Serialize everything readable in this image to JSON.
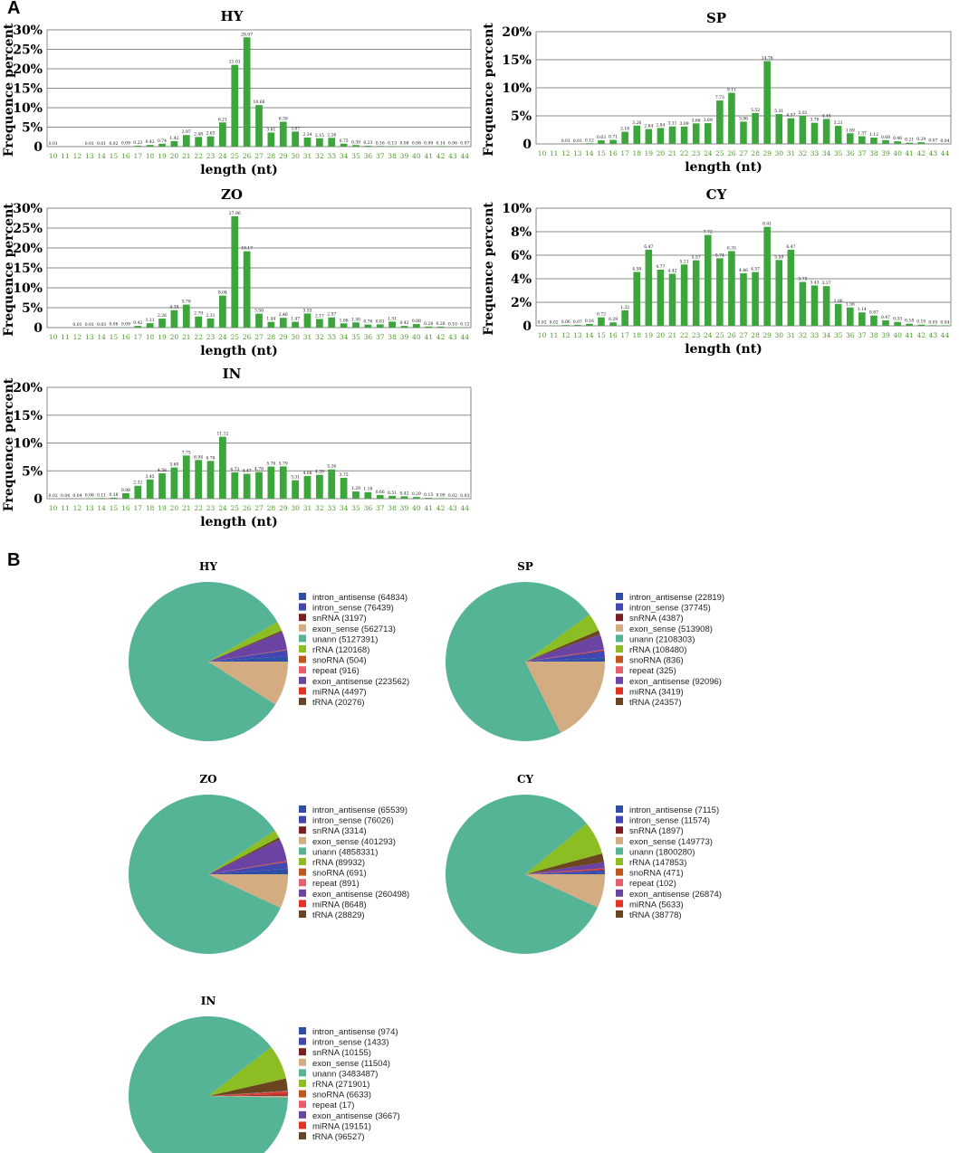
{
  "panels": {
    "a_label": "A",
    "b_label": "B"
  },
  "chart_data": [
    {
      "type": "bar",
      "title": "HY",
      "xlabel": "length (nt)",
      "ylabel": "Frequence percent",
      "yticks": [
        "0",
        "5%",
        "10%",
        "15%",
        "20%",
        "25%",
        "30%"
      ],
      "ylim": [
        0,
        30
      ],
      "categories": [
        "10",
        "11",
        "12",
        "13",
        "14",
        "15",
        "16",
        "17",
        "18",
        "19",
        "20",
        "21",
        "22",
        "23",
        "24",
        "25",
        "26",
        "27",
        "28",
        "29",
        "30",
        "31",
        "32",
        "33",
        "34",
        "35",
        "36",
        "37",
        "38",
        "39",
        "40",
        "41",
        "42",
        "43",
        "44"
      ],
      "values": [
        0.01,
        0,
        0,
        0.01,
        0.01,
        0.02,
        0.09,
        0.23,
        0.42,
        0.74,
        1.42,
        2.97,
        2.48,
        2.63,
        6.21,
        21.01,
        28.07,
        10.66,
        3.61,
        6.39,
        3.87,
        2.34,
        2.15,
        2.26,
        0.75,
        0.39,
        0.23,
        0.16,
        0.13,
        0.08,
        0.08,
        0.09,
        0.14,
        0.06,
        0.07
      ],
      "labels": [
        "0.01",
        "",
        "",
        "0.01",
        "0.01",
        "0.02",
        "0.09",
        "0.23",
        "0.42",
        "0.74",
        "1.42",
        "2.97",
        "2.48",
        "2.63",
        "6.21",
        "21.01",
        "28.07",
        "10.66",
        "3.61",
        "6.39",
        "3.87",
        "2.34",
        "2.15",
        "2.26",
        "0.75",
        "0.39",
        "0.23",
        "0.16",
        "0.13",
        "0.08",
        "0.08",
        "0.09",
        "0.14",
        "0.06",
        "0.07"
      ]
    },
    {
      "type": "bar",
      "title": "SP",
      "xlabel": "length (nt)",
      "ylabel": "Frequence percent",
      "yticks": [
        "0",
        "5%",
        "10%",
        "15%",
        "20%"
      ],
      "ylim": [
        0,
        20
      ],
      "categories": [
        "10",
        "11",
        "12",
        "13",
        "14",
        "15",
        "16",
        "17",
        "18",
        "19",
        "20",
        "21",
        "22",
        "23",
        "24",
        "25",
        "26",
        "27",
        "28",
        "29",
        "30",
        "31",
        "32",
        "33",
        "34",
        "35",
        "36",
        "37",
        "38",
        "39",
        "40",
        "41",
        "42",
        "43",
        "44"
      ],
      "values": [
        0,
        0,
        0.01,
        0.01,
        0.12,
        0.63,
        0.71,
        2.16,
        3.26,
        2.64,
        2.84,
        3.11,
        3.09,
        3.66,
        3.69,
        7.73,
        9.11,
        3.96,
        5.52,
        14.76,
        5.31,
        4.57,
        5.02,
        3.76,
        4.45,
        3.21,
        1.89,
        1.37,
        1.12,
        0.68,
        0.46,
        0.21,
        0.29,
        0.07,
        0.04
      ],
      "labels": [
        "",
        "",
        "0.01",
        "0.01",
        "0.12",
        "0.63",
        "0.71",
        "2.16",
        "3.26",
        "2.64",
        "2.84",
        "3.11",
        "3.09",
        "3.66",
        "3.69",
        "7.73",
        "9.11",
        "3.96",
        "5.52",
        "14.76",
        "5.31",
        "4.57",
        "5.02",
        "3.76",
        "4.45",
        "3.21",
        "1.89",
        "1.37",
        "1.12",
        "0.68",
        "0.46",
        "0.21",
        "0.29",
        "0.07",
        "0.04"
      ]
    },
    {
      "type": "bar",
      "title": "ZO",
      "xlabel": "length (nt)",
      "ylabel": "Frequence percent",
      "yticks": [
        "0",
        "5%",
        "10%",
        "15%",
        "20%",
        "25%",
        "30%"
      ],
      "ylim": [
        0,
        30
      ],
      "categories": [
        "10",
        "11",
        "12",
        "13",
        "14",
        "15",
        "16",
        "17",
        "18",
        "19",
        "20",
        "21",
        "22",
        "23",
        "24",
        "25",
        "26",
        "27",
        "28",
        "29",
        "30",
        "31",
        "32",
        "33",
        "34",
        "35",
        "36",
        "37",
        "38",
        "39",
        "40",
        "41",
        "42",
        "43",
        "44"
      ],
      "values": [
        0,
        0,
        0.01,
        0.01,
        0.03,
        0.06,
        0.09,
        0.42,
        1.11,
        2.26,
        4.38,
        5.78,
        2.79,
        2.31,
        8.04,
        27.96,
        19.17,
        3.5,
        1.44,
        2.46,
        1.47,
        3.55,
        2.17,
        2.57,
        1.06,
        1.3,
        0.76,
        0.81,
        1.51,
        0.42,
        0.88,
        0.28,
        0.26,
        0.1,
        0.12
      ],
      "labels": [
        "",
        "",
        "0.01",
        "0.01",
        "0.03",
        "0.06",
        "0.09",
        "0.42",
        "1.11",
        "2.26",
        "4.38",
        "5.78",
        "2.79",
        "2.31",
        "8.04",
        "27.96",
        "19.17",
        "3.50",
        "1.44",
        "2.46",
        "1.47",
        "3.55",
        "2.17",
        "2.57",
        "1.06",
        "1.30",
        "0.76",
        "0.81",
        "1.51",
        "0.42",
        "0.88",
        "0.28",
        "0.26",
        "0.10",
        "0.12"
      ]
    },
    {
      "type": "bar",
      "title": "CY",
      "xlabel": "length (nt)",
      "ylabel": "Frequence percent",
      "yticks": [
        "0",
        "2%",
        "4%",
        "6%",
        "8%",
        "10%"
      ],
      "ylim": [
        0,
        10
      ],
      "categories": [
        "10",
        "11",
        "12",
        "13",
        "14",
        "15",
        "16",
        "17",
        "18",
        "19",
        "20",
        "21",
        "22",
        "23",
        "24",
        "25",
        "26",
        "27",
        "28",
        "29",
        "30",
        "31",
        "32",
        "33",
        "34",
        "35",
        "36",
        "37",
        "38",
        "39",
        "40",
        "41",
        "42",
        "43",
        "44"
      ],
      "values": [
        0.02,
        0.02,
        0.06,
        0.07,
        0.16,
        0.72,
        0.29,
        1.32,
        4.58,
        6.47,
        4.77,
        4.42,
        5.21,
        5.57,
        7.72,
        5.74,
        6.35,
        4.46,
        4.57,
        8.41,
        5.59,
        6.47,
        3.73,
        3.43,
        3.37,
        1.86,
        1.56,
        1.14,
        0.87,
        0.47,
        0.33,
        0.18,
        0.1,
        0.05,
        0.04
      ],
      "labels": [
        "0.02",
        "0.02",
        "0.06",
        "0.07",
        "0.16",
        "0.72",
        "0.29",
        "1.32",
        "4.58",
        "6.47",
        "4.77",
        "4.42",
        "5.21",
        "5.57",
        "7.72",
        "5.74",
        "6.35",
        "4.46",
        "4.57",
        "8.41",
        "5.59",
        "6.47",
        "3.73",
        "3.43",
        "3.37",
        "1.86",
        "1.56",
        "1.14",
        "0.87",
        "0.47",
        "0.33",
        "0.18",
        "0.10",
        "0.05",
        "0.04"
      ]
    },
    {
      "type": "bar",
      "title": "IN",
      "xlabel": "length (nt)",
      "ylabel": "Frequence percent",
      "yticks": [
        "0",
        "5%",
        "10%",
        "15%",
        "20%"
      ],
      "ylim": [
        0,
        20
      ],
      "categories": [
        "10",
        "11",
        "12",
        "13",
        "14",
        "15",
        "16",
        "17",
        "18",
        "19",
        "20",
        "21",
        "22",
        "23",
        "24",
        "25",
        "26",
        "27",
        "28",
        "29",
        "30",
        "31",
        "32",
        "33",
        "34",
        "35",
        "36",
        "37",
        "38",
        "39",
        "40",
        "41",
        "42",
        "43",
        "44"
      ],
      "values": [
        0.02,
        0.04,
        0.04,
        0.06,
        0.11,
        0.18,
        0.98,
        2.32,
        3.45,
        4.56,
        5.6,
        7.75,
        6.94,
        6.78,
        11.12,
        4.73,
        4.47,
        4.78,
        5.76,
        5.79,
        3.31,
        4.08,
        4.28,
        5.26,
        3.75,
        1.29,
        1.18,
        0.66,
        0.51,
        0.42,
        0.29,
        0.15,
        0.09,
        0.02,
        0.03
      ],
      "labels": [
        "0.02",
        "0.04",
        "0.04",
        "0.06",
        "0.11",
        "0.18",
        "0.98",
        "2.32",
        "3.45",
        "4.56",
        "5.60",
        "7.75",
        "6.94",
        "6.78",
        "11.12",
        "4.73",
        "4.47",
        "4.78",
        "5.76",
        "5.79",
        "3.31",
        "4.08",
        "4.28",
        "5.26",
        "3.75",
        "1.29",
        "1.18",
        "0.66",
        "0.51",
        "0.42",
        "0.29",
        "0.15",
        "0.09",
        "0.02",
        "0.03"
      ]
    },
    {
      "type": "pie",
      "title": "HY",
      "slices": [
        {
          "label": "intron_antisense (64834)",
          "value": 64834
        },
        {
          "label": "intron_sense (76439)",
          "value": 76439
        },
        {
          "label": "snRNA (3197)",
          "value": 3197
        },
        {
          "label": "exon_sense (562713)",
          "value": 562713
        },
        {
          "label": "unann (5127391)",
          "value": 5127391
        },
        {
          "label": "rRNA (120168)",
          "value": 120168
        },
        {
          "label": "snoRNA (504)",
          "value": 504
        },
        {
          "label": "repeat (916)",
          "value": 916
        },
        {
          "label": "exon_antisense (223562)",
          "value": 223562
        },
        {
          "label": "miRNA (4497)",
          "value": 4497
        },
        {
          "label": "tRNA (20276)",
          "value": 20276
        }
      ]
    },
    {
      "type": "pie",
      "title": "SP",
      "slices": [
        {
          "label": "intron_antisense (22819)",
          "value": 22819
        },
        {
          "label": "intron_sense (37745)",
          "value": 37745
        },
        {
          "label": "snRNA (4387)",
          "value": 4387
        },
        {
          "label": "exon_sense (513908)",
          "value": 513908
        },
        {
          "label": "unann (2108303)",
          "value": 2108303
        },
        {
          "label": "rRNA (108480)",
          "value": 108480
        },
        {
          "label": "snoRNA (836)",
          "value": 836
        },
        {
          "label": "repeat (325)",
          "value": 325
        },
        {
          "label": "exon_antisense (92096)",
          "value": 92096
        },
        {
          "label": "miRNA (3419)",
          "value": 3419
        },
        {
          "label": "tRNA (24357)",
          "value": 24357
        }
      ]
    },
    {
      "type": "pie",
      "title": "ZO",
      "slices": [
        {
          "label": "intron_antisense (65539)",
          "value": 65539
        },
        {
          "label": "intron_sense (76026)",
          "value": 76026
        },
        {
          "label": "snRNA (3314)",
          "value": 3314
        },
        {
          "label": "exon_sense (401293)",
          "value": 401293
        },
        {
          "label": "unann (4858331)",
          "value": 4858331
        },
        {
          "label": "rRNA (89932)",
          "value": 89932
        },
        {
          "label": "snoRNA (691)",
          "value": 691
        },
        {
          "label": "repeat (891)",
          "value": 891
        },
        {
          "label": "exon_antisense (260498)",
          "value": 260498
        },
        {
          "label": "miRNA (8648)",
          "value": 8648
        },
        {
          "label": "tRNA (28829)",
          "value": 28829
        }
      ]
    },
    {
      "type": "pie",
      "title": "CY",
      "slices": [
        {
          "label": "intron_antisense (7115)",
          "value": 7115
        },
        {
          "label": "intron_sense (11574)",
          "value": 11574
        },
        {
          "label": "snRNA (1897)",
          "value": 1897
        },
        {
          "label": "exon_sense (149773)",
          "value": 149773
        },
        {
          "label": "unann (1800280)",
          "value": 1800280
        },
        {
          "label": "rRNA (147853)",
          "value": 147853
        },
        {
          "label": "snoRNA (471)",
          "value": 471
        },
        {
          "label": "repeat (102)",
          "value": 102
        },
        {
          "label": "exon_antisense (26874)",
          "value": 26874
        },
        {
          "label": "miRNA (5633)",
          "value": 5633
        },
        {
          "label": "tRNA (38778)",
          "value": 38778
        }
      ]
    },
    {
      "type": "pie",
      "title": "IN",
      "slices": [
        {
          "label": "intron_antisense (974)",
          "value": 974
        },
        {
          "label": "intron_sense (1433)",
          "value": 1433
        },
        {
          "label": "snRNA (10155)",
          "value": 10155
        },
        {
          "label": "exon_sense (11504)",
          "value": 11504
        },
        {
          "label": "unann (3483487)",
          "value": 3483487
        },
        {
          "label": "rRNA (271901)",
          "value": 271901
        },
        {
          "label": "snoRNA (6633)",
          "value": 6633
        },
        {
          "label": "repeat (17)",
          "value": 17
        },
        {
          "label": "exon_antisense (3667)",
          "value": 3667
        },
        {
          "label": "miRNA (19151)",
          "value": 19151
        },
        {
          "label": "tRNA (96527)",
          "value": 96527
        }
      ]
    }
  ],
  "colors": {
    "bar": "#3ca53c",
    "grid": "#8a8a8a",
    "tick_green": "#4e9a2a",
    "slices": [
      "#2f4ea8",
      "#4146b0",
      "#7c1d22",
      "#d3ac82",
      "#55b396",
      "#8cbd22",
      "#c1551d",
      "#e85e6a",
      "#6a43a3",
      "#e23223",
      "#6b4420"
    ]
  }
}
